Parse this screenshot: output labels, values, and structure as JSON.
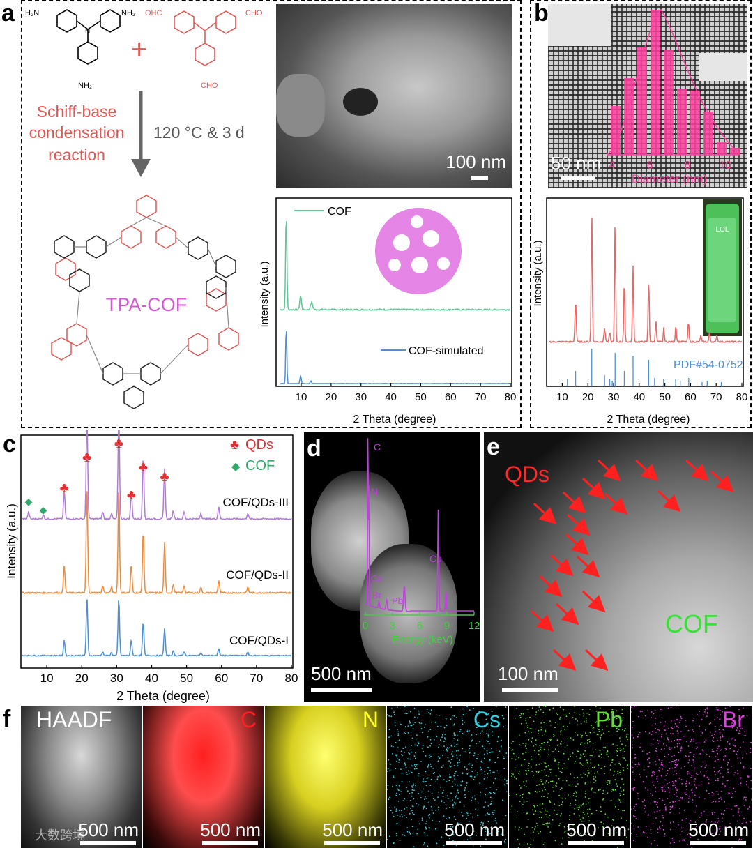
{
  "figure": {
    "panel_letters": [
      "a",
      "b",
      "c",
      "d",
      "e",
      "f"
    ],
    "watermark": "大数跨境"
  },
  "panel_a": {
    "reactant1": {
      "substituents": [
        "H₂N",
        "NH₂",
        "NH₂"
      ]
    },
    "reactant2": {
      "substituents": [
        "OHC",
        "CHO",
        "CHO"
      ]
    },
    "plus": "+",
    "reaction_lines": [
      "Schiff-base",
      "condensation",
      "reaction"
    ],
    "conditions": "120 °C & 3 d",
    "product_label": "TPA-COF",
    "sem_scale": "100 nm",
    "xrd": {
      "legend_top": "COF",
      "legend_bottom": "COF-simulated",
      "ylabel": "Intensity (a.u.)",
      "xlabel": "2 Theta (degree)",
      "xticks": [
        "10",
        "20",
        "30",
        "40",
        "50",
        "60",
        "70",
        "80"
      ]
    }
  },
  "panel_b": {
    "tem_scale": "50 nm",
    "histogram": {
      "xlabel": "Diameter (nm)",
      "xticks": [
        "4",
        "6",
        "8",
        "10"
      ],
      "color": "#ff3fa0"
    },
    "xrd": {
      "ylabel": "Intensity (a.u.)",
      "xlabel": "2 Theta (degree)",
      "pdf_label": "PDF#54-0752",
      "xticks": [
        "10",
        "20",
        "30",
        "40",
        "50",
        "60",
        "70",
        "80"
      ],
      "vial_label": "LOL"
    }
  },
  "panel_c": {
    "legend": [
      {
        "symbol": "♣",
        "label": "QDs",
        "color": "#e03030"
      },
      {
        "symbol": "◆",
        "label": "COF",
        "color": "#2fa86a"
      }
    ],
    "series": [
      "COF/QDs-III",
      "COF/QDs-II",
      "COF/QDs-I"
    ],
    "ylabel": "Intensity (a.u.)",
    "xlabel": "2 Theta (degree)",
    "xticks": [
      "10",
      "20",
      "30",
      "40",
      "50",
      "60",
      "70",
      "80"
    ]
  },
  "panel_d": {
    "scale": "500 nm",
    "eds": {
      "peaks": [
        "C",
        "N",
        "Cu",
        "Cs",
        "Br",
        "Pb"
      ],
      "xlabel": "Energy (keV)",
      "xticks": [
        "0",
        "3",
        "6",
        "9",
        "12"
      ]
    }
  },
  "panel_e": {
    "qd_label": "QDs",
    "cof_label": "COF",
    "scale": "100 nm"
  },
  "panel_f": {
    "maps": [
      {
        "label": "HAADF",
        "color": "#ffffff",
        "scale": "500 nm"
      },
      {
        "label": "C",
        "color": "#ff2020",
        "scale": "500 nm"
      },
      {
        "label": "N",
        "color": "#ffff30",
        "scale": "500 nm"
      },
      {
        "label": "Cs",
        "color": "#30d0e0",
        "scale": "500 nm"
      },
      {
        "label": "Pb",
        "color": "#60e030",
        "scale": "500 nm"
      },
      {
        "label": "Br",
        "color": "#e040e0",
        "scale": "500 nm"
      }
    ]
  }
}
